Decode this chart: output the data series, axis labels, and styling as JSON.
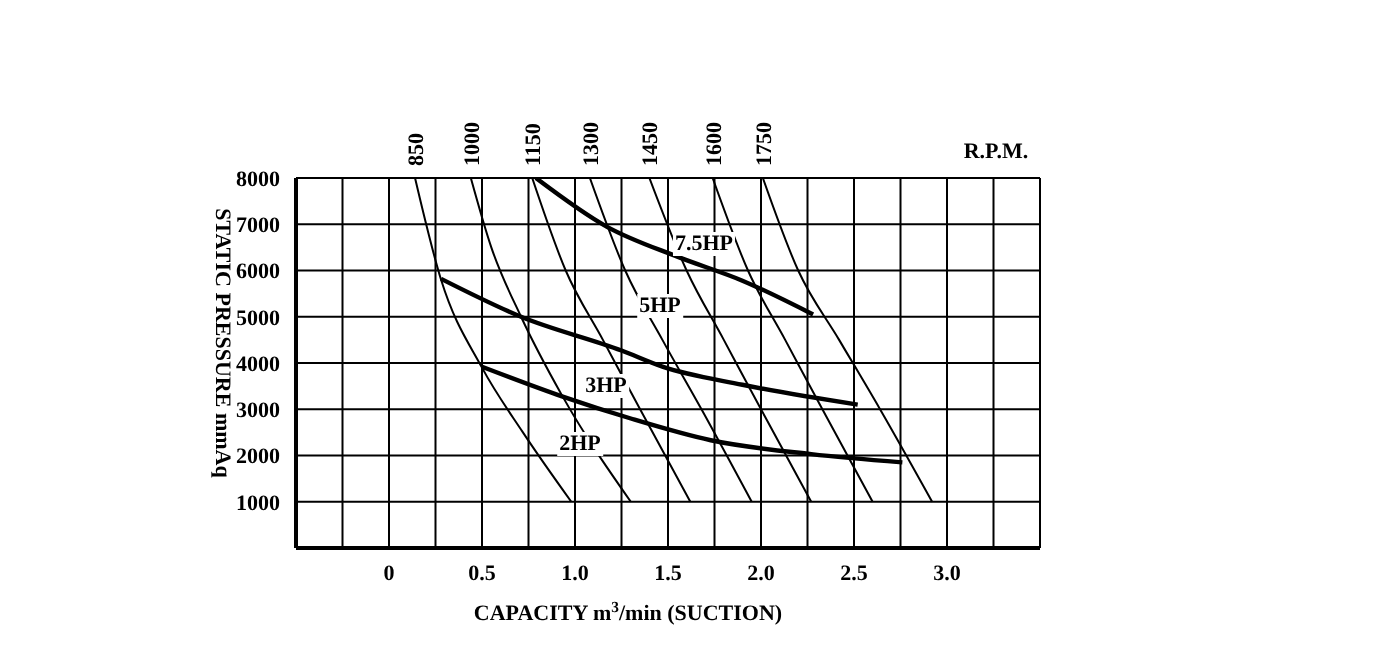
{
  "chart_data": {
    "type": "line",
    "xlabel": "CAPACITY m$^{3}$/min (SUCTION)",
    "ylabel": "STATIC PRESSURE mmAq",
    "xlim": [
      -0.5,
      3.5
    ],
    "xticks": [
      {
        "value": -0.25,
        "label": null
      },
      0,
      {
        "value": 0.25,
        "label": null
      },
      0.5,
      {
        "value": 0.75,
        "label": null
      },
      {
        "value": 1,
        "label": "1.0"
      },
      {
        "value": 1.25,
        "label": null
      },
      1.5,
      {
        "value": 1.75,
        "label": null
      },
      {
        "value": 2,
        "label": "2.0"
      },
      {
        "value": 2.25,
        "label": null
      },
      2.5,
      {
        "value": 2.75,
        "label": null
      },
      {
        "value": 3,
        "label": "3.0"
      },
      {
        "value": 3.25,
        "label": null
      }
    ],
    "ylim": [
      0,
      8000
    ],
    "yticks": [
      1000,
      2000,
      3000,
      4000,
      5000,
      6000,
      7000,
      8000
    ],
    "grid": true,
    "marker": "none",
    "line_style": "solid",
    "annotations": [
      "R.P.M.",
      "7.5HP",
      "5HP",
      "3HP",
      "2HP"
    ],
    "series": [
      {
        "color": "#000000",
        "x": [
          0.79,
          1.17,
          1.55,
          1.9,
          2.28
        ],
        "values": [
          8000,
          6950,
          6300,
          5780,
          5050
        ]
      },
      {
        "color": "#000000",
        "x": [
          0.28,
          0.71,
          1.25,
          1.47,
          1.9,
          2.52
        ],
        "values": [
          5820,
          5000,
          4270,
          3920,
          3530,
          3100
        ]
      },
      {
        "color": "#000000",
        "x": [
          0.5,
          0.93,
          1.3,
          1.73,
          2.27,
          2.76
        ],
        "values": [
          3920,
          3280,
          2800,
          2330,
          2030,
          1850
        ]
      },
      {
        "name": "850",
        "color": "#000000",
        "x": [
          0.14,
          0.28,
          0.5,
          0.72,
          0.98
        ],
        "values": [
          8000,
          5800,
          3900,
          2500,
          1000
        ]
      },
      {
        "name": "1000",
        "color": "#000000",
        "x": [
          0.44,
          0.55,
          0.71,
          0.93,
          1.3
        ],
        "values": [
          8000,
          6500,
          5000,
          3300,
          1000
        ]
      },
      {
        "name": "1150",
        "color": "#000000",
        "x": [
          0.77,
          0.95,
          1.15,
          1.35,
          1.62
        ],
        "values": [
          8000,
          6000,
          4500,
          3000,
          1000
        ]
      },
      {
        "name": "1300",
        "color": "#000000",
        "x": [
          1.08,
          1.27,
          1.47,
          1.68,
          1.95
        ],
        "values": [
          8000,
          6000,
          4500,
          3000,
          1000
        ]
      },
      {
        "name": "1450",
        "color": "#000000",
        "x": [
          1.4,
          1.6,
          1.8,
          2.0,
          2.27
        ],
        "values": [
          8000,
          6000,
          4500,
          3000,
          1000
        ]
      },
      {
        "name": "1600",
        "color": "#000000",
        "x": [
          1.74,
          1.93,
          2.13,
          2.33,
          2.6
        ],
        "values": [
          8000,
          6000,
          4500,
          3000,
          1000
        ]
      },
      {
        "name": "1750",
        "color": "#000000",
        "x": [
          2.01,
          2.2,
          2.42,
          2.64,
          2.92
        ],
        "values": [
          8000,
          6000,
          4500,
          3000,
          1000
        ]
      }
    ]
  }
}
